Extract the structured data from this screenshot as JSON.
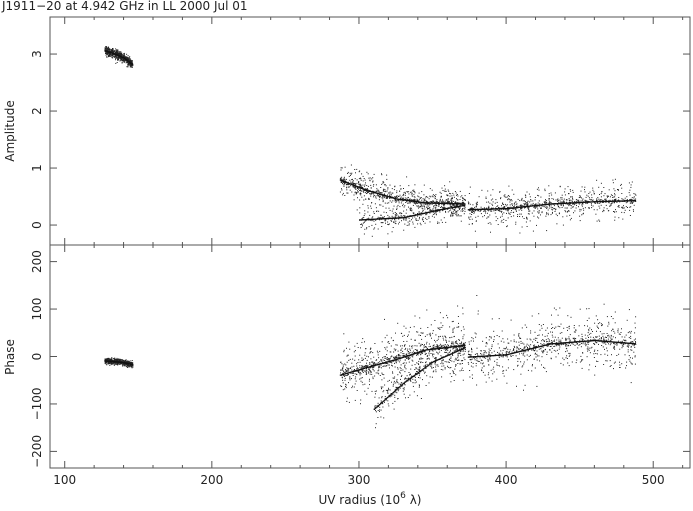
{
  "title": "J1911−20 at 4.942 GHz in LL  2000 Jul 01",
  "xlabel": "UV radius  (10",
  "xlabel_sup": "6",
  "xlabel_tail": " λ)",
  "chart_data": [
    {
      "type": "scatter",
      "panel": "amplitude",
      "ylabel": "Amplitude",
      "xlim": [
        90,
        525
      ],
      "ylim": [
        -0.35,
        3.65
      ],
      "x_ticks": [
        100,
        200,
        300,
        400,
        500
      ],
      "y_ticks": [
        0,
        1,
        2,
        3
      ],
      "y_tick_labels": [
        "0",
        "1",
        "2",
        "3"
      ],
      "clusters": [
        {
          "x": [
            127,
            146
          ],
          "trend": [
            [
              127,
              3.07
            ],
            [
              135,
              3.0
            ],
            [
              140,
              2.94
            ],
            [
              146,
              2.82
            ]
          ],
          "spread": 0.08,
          "density": 1.0
        },
        {
          "x": [
            287,
            372
          ],
          "trend": [
            [
              287,
              0.8
            ],
            [
              305,
              0.62
            ],
            [
              325,
              0.47
            ],
            [
              345,
              0.4
            ],
            [
              372,
              0.38
            ]
          ],
          "spread": 0.28,
          "density": 1.0
        },
        {
          "x": [
            300,
            372
          ],
          "trend": [
            [
              300,
              0.1
            ],
            [
              330,
              0.14
            ],
            [
              355,
              0.28
            ],
            [
              372,
              0.36
            ]
          ],
          "spread": 0.2,
          "density": 0.4
        },
        {
          "x": [
            374,
            488
          ],
          "trend": [
            [
              374,
              0.28
            ],
            [
              400,
              0.3
            ],
            [
              430,
              0.38
            ],
            [
              460,
              0.42
            ],
            [
              488,
              0.44
            ]
          ],
          "spread": 0.3,
          "density": 1.0
        }
      ],
      "grid": false
    },
    {
      "type": "scatter",
      "panel": "phase",
      "ylabel": "Phase",
      "xlim": [
        90,
        525
      ],
      "ylim": [
        -235,
        235
      ],
      "x_ticks": [
        100,
        200,
        300,
        400,
        500
      ],
      "x_tick_labels": [
        "100",
        "200",
        "300",
        "400",
        "500"
      ],
      "y_ticks": [
        -200,
        -100,
        0,
        100,
        200
      ],
      "y_tick_labels": [
        "−200",
        "−100",
        "0",
        "100",
        "200"
      ],
      "clusters": [
        {
          "x": [
            127,
            146
          ],
          "trend": [
            [
              127,
              -8
            ],
            [
              135,
              -10
            ],
            [
              140,
              -12
            ],
            [
              146,
              -16
            ]
          ],
          "spread": 6,
          "density": 1.0
        },
        {
          "x": [
            287,
            372
          ],
          "trend": [
            [
              287,
              -38
            ],
            [
              305,
              -22
            ],
            [
              325,
              -5
            ],
            [
              345,
              15
            ],
            [
              372,
              25
            ]
          ],
          "spread": 60,
          "density": 1.0
        },
        {
          "x": [
            310,
            372
          ],
          "trend": [
            [
              310,
              -110
            ],
            [
              330,
              -55
            ],
            [
              350,
              -10
            ],
            [
              372,
              20
            ]
          ],
          "spread": 40,
          "density": 0.35
        },
        {
          "x": [
            374,
            488
          ],
          "trend": [
            [
              374,
              0
            ],
            [
              400,
              5
            ],
            [
              430,
              28
            ],
            [
              460,
              35
            ],
            [
              488,
              28
            ]
          ],
          "spread": 60,
          "density": 1.0
        }
      ],
      "grid": false
    }
  ]
}
